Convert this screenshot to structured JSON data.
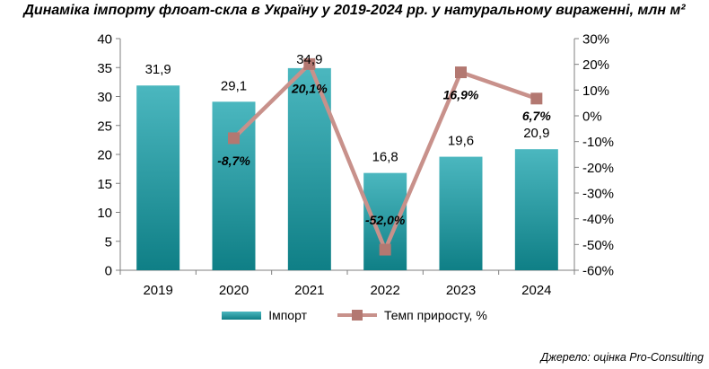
{
  "title": "Динаміка імпорту флоат-скла в Україну у 2019-2024 рр. у натуральному вираженні, млн м²",
  "source": "Джерело: оцінка Pro-Consulting",
  "colors": {
    "bar_top": "#4bb7bf",
    "bar_bottom": "#0f7f86",
    "line": "#c8918b",
    "marker": "#b37871",
    "axis": "#7f7f7f"
  },
  "chart_data": {
    "type": "bar",
    "categories": [
      "2019",
      "2020",
      "2021",
      "2022",
      "2023",
      "2024"
    ],
    "series": [
      {
        "name": "Імпорт",
        "type": "bar",
        "axis": "left",
        "values": [
          31.9,
          29.1,
          34.9,
          16.8,
          19.6,
          20.9
        ],
        "labels": [
          "31,9",
          "29,1",
          "34,9",
          "16,8",
          "19,6",
          "20,9"
        ]
      },
      {
        "name": "Темп приросту, %",
        "type": "line",
        "axis": "right",
        "values": [
          null,
          -8.7,
          20.1,
          -52.0,
          16.9,
          6.7
        ],
        "labels": [
          "",
          "-8,7%",
          "20,1%",
          "-52,0%",
          "16,9%",
          "6,7%"
        ]
      }
    ],
    "y_left": {
      "min": 0,
      "max": 40,
      "ticks": [
        "0",
        "5",
        "10",
        "15",
        "20",
        "25",
        "30",
        "35",
        "40"
      ]
    },
    "y_right": {
      "min": -60,
      "max": 30,
      "ticks": [
        "-60%",
        "-50%",
        "-40%",
        "-30%",
        "-20%",
        "-10%",
        "0%",
        "10%",
        "20%",
        "30%"
      ]
    },
    "grid": false,
    "legend_position": "bottom"
  }
}
